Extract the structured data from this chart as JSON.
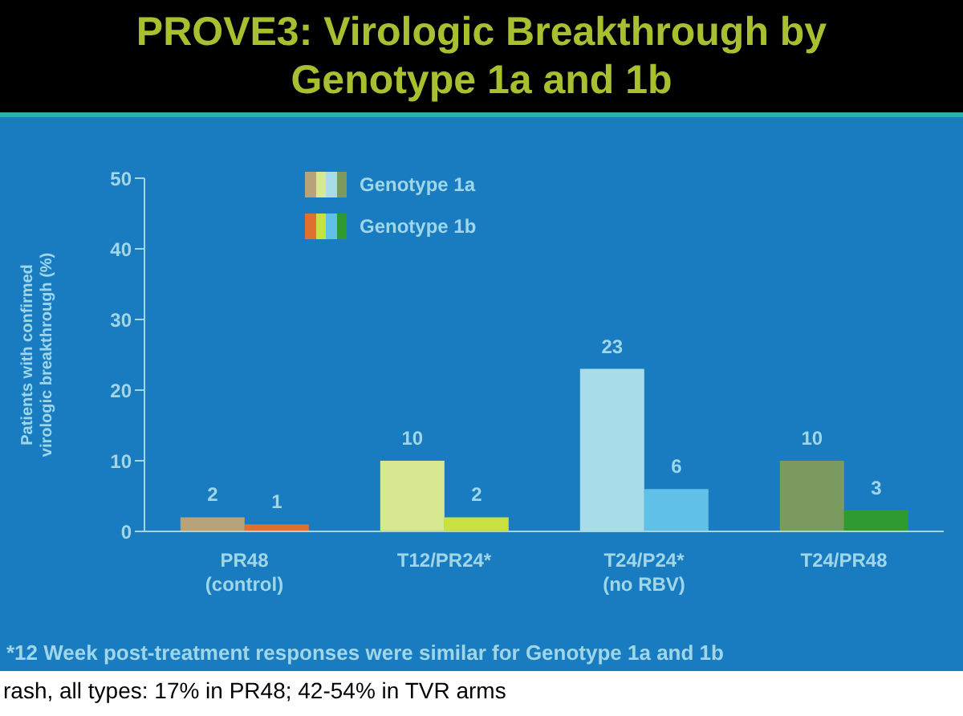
{
  "chart_data": {
    "type": "bar",
    "title": "PROVE3: Virologic Breakthrough by Genotype 1a and 1b",
    "ylabel": "Patients with confirmed virologic breakthrough (%)",
    "categories": [
      "PR48\n(control)",
      "T12/PR24*",
      "T24/P24*\n(no RBV)",
      "T24/PR48"
    ],
    "series": [
      {
        "name": "Genotype 1a",
        "colors": [
          "#b8a27a",
          "#d8e890",
          "#a8dce8",
          "#7a9a60"
        ],
        "values": [
          2,
          10,
          23,
          10
        ]
      },
      {
        "name": "Genotype 1b",
        "colors": [
          "#e07030",
          "#c8e040",
          "#60c0e8",
          "#2e9a30"
        ],
        "values": [
          1,
          2,
          6,
          3
        ]
      }
    ],
    "ylim": [
      0,
      50
    ],
    "yticks": [
      0,
      10,
      20,
      30,
      40,
      50
    ],
    "grid": false,
    "legend": "top left",
    "data_labels": true,
    "annotations": [
      "*12 Week post-treatment responses were similar for Genotype 1a and 1b",
      "rash, all types: 17% in PR48; 42-54% in TVR arms"
    ]
  }
}
